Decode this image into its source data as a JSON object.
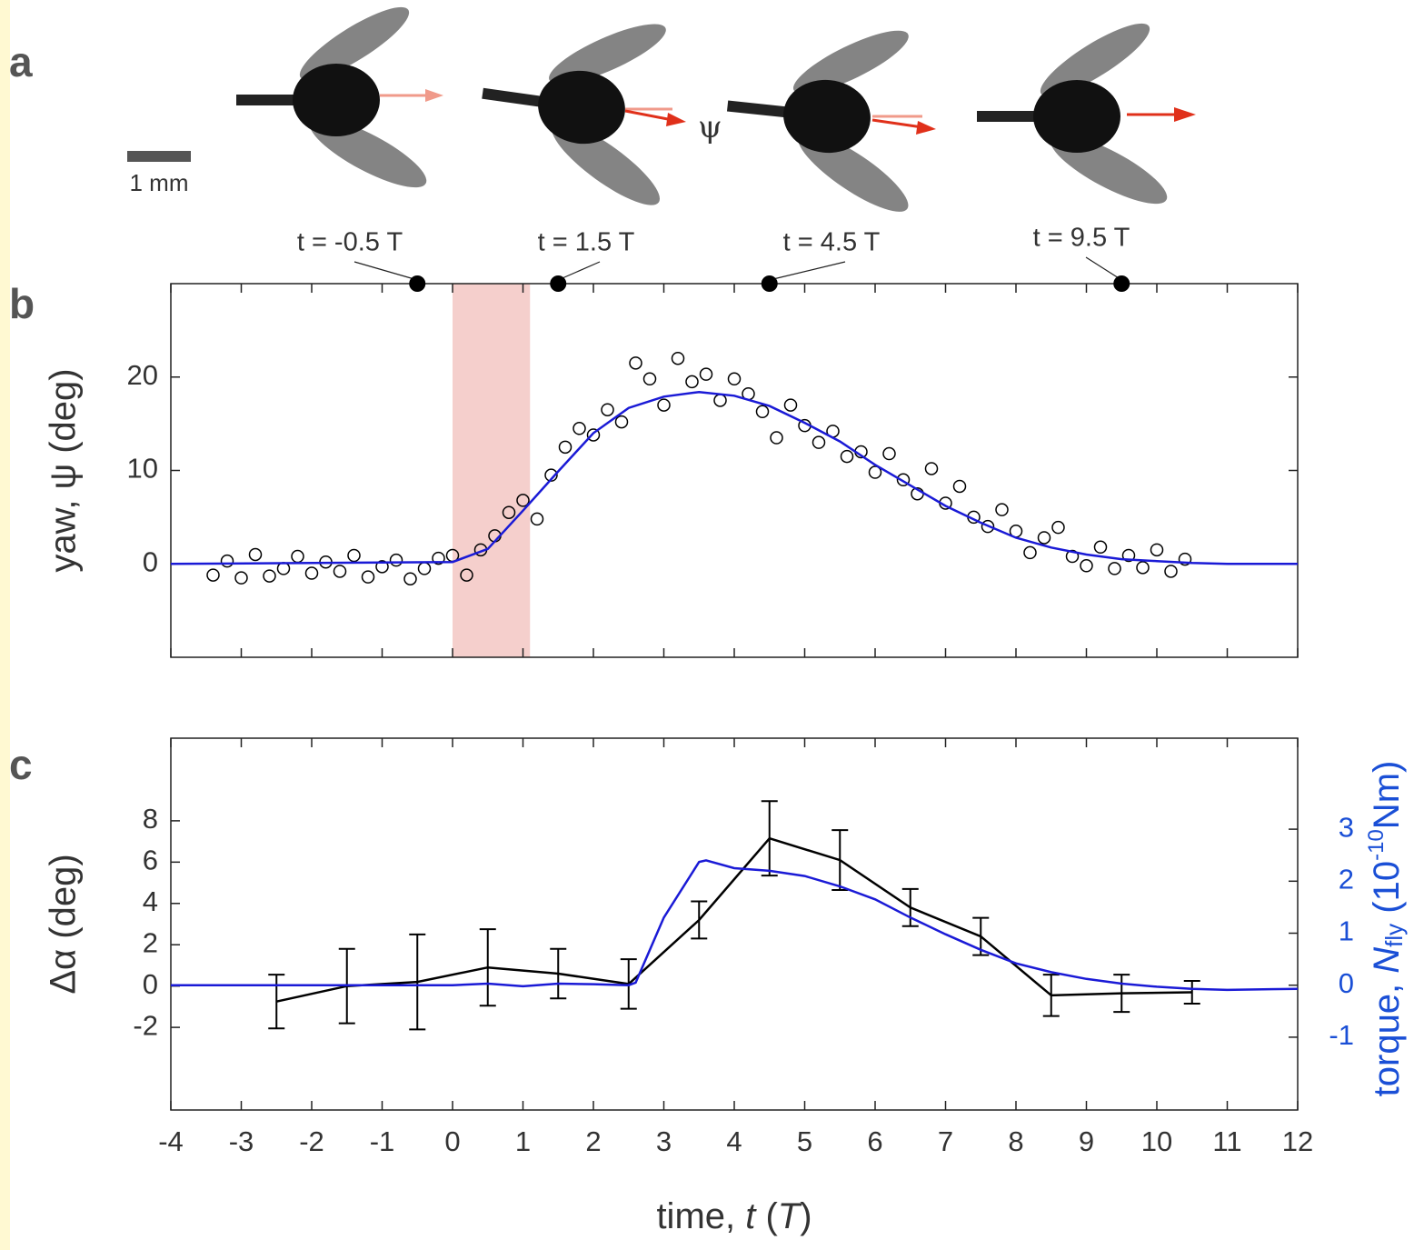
{
  "panel_labels": [
    "a",
    "b",
    "c"
  ],
  "figure_a": {
    "scale_bar": "1 mm",
    "angle_label": "ψ",
    "frame_labels": [
      "t = -0.5 T",
      "t = 1.5 T",
      "t = 4.5 T",
      "t = 9.5 T"
    ]
  },
  "chart_data": [
    {
      "type": "scatter",
      "ylabel": "yaw, ψ (deg)",
      "xlim": [
        -4,
        12
      ],
      "xticks": [
        -4,
        -3,
        -2,
        -1,
        0,
        1,
        2,
        3,
        4,
        5,
        6,
        7,
        8,
        9,
        10,
        11,
        12
      ],
      "ylim": [
        -10,
        30
      ],
      "yticks": [
        0,
        10,
        20
      ],
      "span": [
        0,
        1.1
      ],
      "span_color": "#f5cfcc",
      "markers": {
        "x": [
          -0.5,
          1.5,
          4.5,
          9.5
        ],
        "color": "#000000"
      },
      "series": [
        {
          "type": "scatter",
          "color": "#000000",
          "x": [
            -3.4,
            -3.2,
            -3.0,
            -2.8,
            -2.6,
            -2.4,
            -2.2,
            -2.0,
            -1.8,
            -1.6,
            -1.4,
            -1.2,
            -1.0,
            -0.8,
            -0.6,
            -0.4,
            -0.2,
            0,
            0.2,
            0.4,
            0.6,
            0.8,
            1.0,
            1.2,
            1.4,
            1.6,
            1.8,
            2.0,
            2.2,
            2.4,
            2.6,
            2.8,
            3.0,
            3.2,
            3.4,
            3.6,
            3.8,
            4.0,
            4.2,
            4.4,
            4.6,
            4.8,
            5.0,
            5.2,
            5.4,
            5.6,
            5.8,
            6.0,
            6.2,
            6.4,
            6.6,
            6.8,
            7.0,
            7.2,
            7.4,
            7.6,
            7.8,
            8.0,
            8.2,
            8.4,
            8.6,
            8.8,
            9.0,
            9.2,
            9.4,
            9.6,
            9.8,
            10.0,
            10.2,
            10.4
          ],
          "values": [
            -1.2,
            0.3,
            -1.5,
            1.0,
            -1.3,
            -0.5,
            0.8,
            -1.0,
            0.2,
            -0.8,
            0.9,
            -1.4,
            -0.3,
            0.4,
            -1.6,
            -0.5,
            0.6,
            0.9,
            -1.2,
            1.5,
            3.0,
            5.5,
            6.8,
            4.8,
            9.5,
            12.5,
            14.5,
            13.8,
            16.5,
            15.2,
            21.5,
            19.8,
            17.0,
            22.0,
            19.5,
            20.3,
            17.5,
            19.8,
            18.2,
            16.3,
            13.5,
            17.0,
            14.8,
            13.0,
            14.2,
            11.5,
            12.0,
            9.8,
            11.8,
            9.0,
            7.5,
            10.2,
            6.5,
            8.3,
            5.0,
            4.0,
            5.8,
            3.5,
            1.2,
            2.8,
            3.9,
            0.8,
            -0.2,
            1.8,
            -0.5,
            0.9,
            -0.4,
            1.5,
            -0.8,
            0.5
          ]
        },
        {
          "type": "line",
          "color": "#1a1ad6",
          "x": [
            -4,
            0,
            0.5,
            1,
            1.5,
            2,
            2.5,
            3,
            3.5,
            4,
            4.5,
            5,
            5.5,
            6,
            6.5,
            7,
            7.5,
            8,
            8.5,
            9,
            9.5,
            10,
            10.5,
            11,
            12
          ],
          "values": [
            0,
            0.2,
            1.6,
            5.7,
            9.9,
            14,
            16.7,
            17.9,
            18.4,
            18.0,
            16.9,
            15.1,
            13.1,
            10.6,
            8.4,
            6.2,
            4.4,
            2.8,
            1.75,
            1.0,
            0.5,
            0.3,
            0.1,
            0,
            0
          ]
        }
      ]
    },
    {
      "type": "line",
      "xlabel": [
        "time, ",
        "t",
        " (",
        "T",
        ")"
      ],
      "ylabel": "Δα (deg)",
      "y2label": [
        "torque, ",
        "N",
        "fly",
        " (10",
        "-10",
        "Nm)"
      ],
      "y2color": "#1a4fd6",
      "xlim": [
        -4,
        12
      ],
      "xticks": [
        -4,
        -3,
        -2,
        -1,
        0,
        1,
        2,
        3,
        4,
        5,
        6,
        7,
        8,
        9,
        10,
        11,
        12
      ],
      "ylim": [
        -6,
        12
      ],
      "yticks": [
        -2,
        0,
        2,
        4,
        6,
        8
      ],
      "y2lim": [
        -2.4,
        4.75
      ],
      "y2ticks": [
        -1,
        0,
        1,
        2,
        3
      ],
      "series": [
        {
          "color": "#000000",
          "x": [
            -2.5,
            -1.5,
            -0.5,
            0.5,
            1.5,
            2.5,
            3.5,
            4.5,
            5.5,
            6.5,
            7.5,
            8.5,
            9.5,
            10.5
          ],
          "values": [
            -0.75,
            0,
            0.2,
            0.9,
            0.6,
            0.1,
            3.2,
            7.15,
            6.1,
            3.8,
            2.4,
            -0.45,
            -0.35,
            -0.3
          ],
          "errors": [
            1.3,
            1.8,
            2.3,
            1.85,
            1.2,
            1.2,
            0.9,
            1.8,
            1.45,
            0.9,
            0.9,
            1.0,
            0.9,
            0.55
          ]
        },
        {
          "color": "#1a1ad6",
          "axis": "y2",
          "x": [
            -4,
            -2,
            0,
            0.5,
            1,
            1.5,
            2,
            2.5,
            2.6,
            3,
            3.5,
            3.6,
            4,
            4.5,
            5,
            5.5,
            6,
            6.5,
            7,
            7.5,
            8,
            8.5,
            9,
            9.5,
            10,
            10.5,
            11,
            12
          ],
          "values": [
            0,
            0,
            0,
            0.03,
            -0.02,
            0.03,
            0.02,
            0,
            0.05,
            1.3,
            2.37,
            2.4,
            2.25,
            2.2,
            2.1,
            1.9,
            1.65,
            1.3,
            0.98,
            0.68,
            0.42,
            0.25,
            0.12,
            0.03,
            -0.03,
            -0.07,
            -0.09,
            -0.07
          ]
        }
      ]
    }
  ]
}
